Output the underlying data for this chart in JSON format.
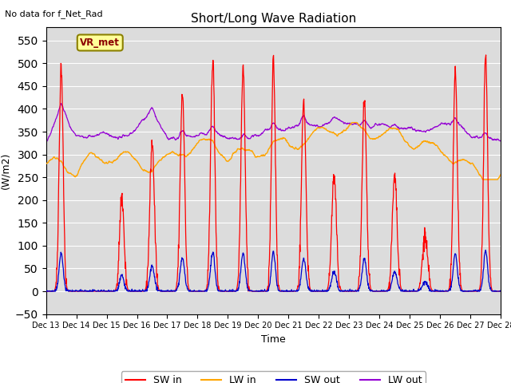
{
  "title": "Short/Long Wave Radiation",
  "ylabel": "(W/m2)",
  "xlabel": "Time",
  "annotation_top_left": "No data for f_Net_Rad",
  "legend_box_label": "VR_met",
  "ylim": [
    -50,
    580
  ],
  "yticks": [
    -50,
    0,
    50,
    100,
    150,
    200,
    250,
    300,
    350,
    400,
    450,
    500,
    550
  ],
  "colors": {
    "SW_in": "#FF0000",
    "LW_in": "#FFA500",
    "SW_out": "#0000CD",
    "LW_out": "#9400D3"
  },
  "legend_labels": [
    "SW in",
    "LW in",
    "SW out",
    "LW out"
  ],
  "bg_color": "#DCDCDC",
  "x_tick_labels": [
    "Dec 13",
    "Dec 14",
    "Dec 15",
    "Dec 16",
    "Dec 17",
    "Dec 18",
    "Dec 19",
    "Dec 20",
    "Dec 21",
    "Dec 22",
    "Dec 23",
    "Dec 24",
    "Dec 25",
    "Dec 26",
    "Dec 27",
    "Dec 28"
  ],
  "n_points": 1440,
  "days": 15
}
